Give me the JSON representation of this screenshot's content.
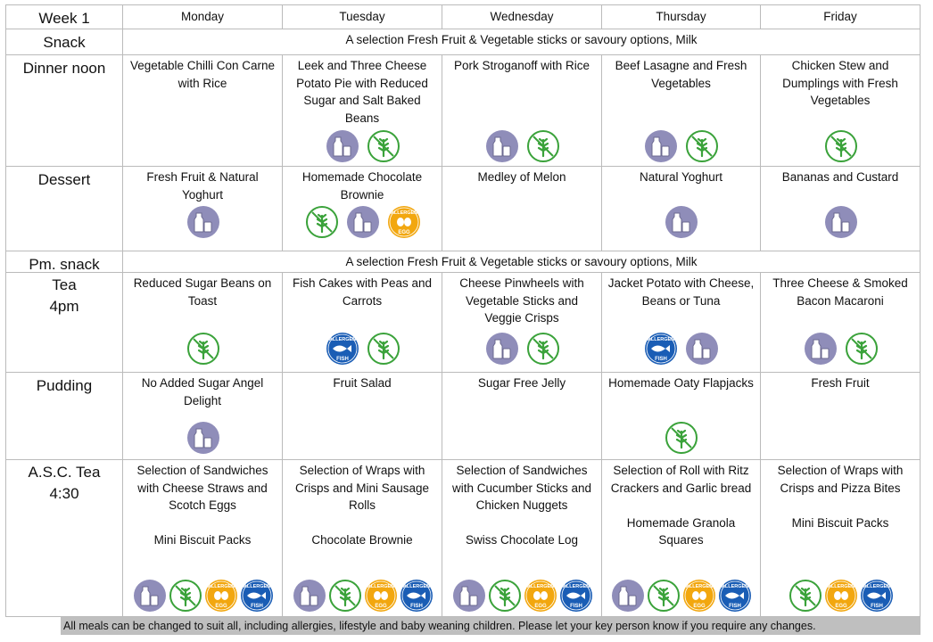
{
  "header": {
    "title": "Week 1",
    "days": [
      "Monday",
      "Tuesday",
      "Wednesday",
      "Thursday",
      "Friday"
    ]
  },
  "rows": [
    {
      "label": [
        "Snack"
      ],
      "span": "A selection Fresh Fruit & Vegetable sticks or savoury options, Milk"
    },
    {
      "label": [
        "Dinner noon"
      ],
      "cells": [
        [
          "Vegetable Chilli Con Carne with Rice"
        ],
        [
          "Leek and Three Cheese Potato Pie with Reduced Sugar and Salt Baked Beans"
        ],
        [
          "Pork Stroganoff with Rice"
        ],
        [
          "Beef Lasagne and Fresh Vegetables"
        ],
        [
          "Chicken Stew and Dumplings with Fresh Vegetables"
        ]
      ]
    },
    {
      "label": [
        "Dessert"
      ],
      "cells": [
        [
          "Fresh Fruit & Natural Yoghurt"
        ],
        [
          "Homemade Chocolate Brownie"
        ],
        [
          "Medley of Melon"
        ],
        [
          "Natural Yoghurt"
        ],
        [
          "Bananas and Custard"
        ]
      ]
    },
    {
      "label": [
        "Pm. snack"
      ],
      "span": "A selection Fresh Fruit & Vegetable sticks or savoury options, Milk"
    },
    {
      "label": [
        "Tea",
        "4pm"
      ],
      "cells": [
        [
          "Reduced Sugar Beans on Toast"
        ],
        [
          "Fish Cakes with Peas and Carrots"
        ],
        [
          "Cheese Pinwheels with Vegetable Sticks and Veggie Crisps"
        ],
        [
          "Jacket Potato with Cheese, Beans or Tuna"
        ],
        [
          "Three Cheese & Smoked Bacon Macaroni"
        ]
      ]
    },
    {
      "label": [
        "Pudding"
      ],
      "cells": [
        [
          "No Added Sugar Angel Delight"
        ],
        [
          "Fruit Salad"
        ],
        [
          "Sugar Free Jelly"
        ],
        [
          "Homemade Oaty Flapjacks"
        ],
        [
          "Fresh Fruit"
        ]
      ]
    },
    {
      "label": [
        "A.S.C. Tea",
        "4:30"
      ],
      "cells": [
        [
          "Selection of Sandwiches with Cheese Straws and Scotch Eggs",
          "Mini Biscuit Packs"
        ],
        [
          "Selection of Wraps with Crisps and Mini Sausage Rolls",
          "Chocolate Brownie"
        ],
        [
          "Selection of Sandwiches with Cucumber Sticks and",
          "Chicken Nuggets",
          "Swiss Chocolate Log"
        ],
        [
          "Selection of Roll with Ritz Crackers and Garlic bread",
          "Homemade Granola Squares"
        ],
        [
          "Selection of Wraps with Crisps and Pizza Bites",
          "Mini Biscuit Packs"
        ]
      ]
    }
  ],
  "allergen_labels": {
    "prefix": "ALLERGEN",
    "egg": "EGG",
    "fish": "FISH"
  },
  "footer": "All meals can be changed to suit all, including allergies, lifestyle and baby weaning children. Please let your key person know if you require any changes."
}
